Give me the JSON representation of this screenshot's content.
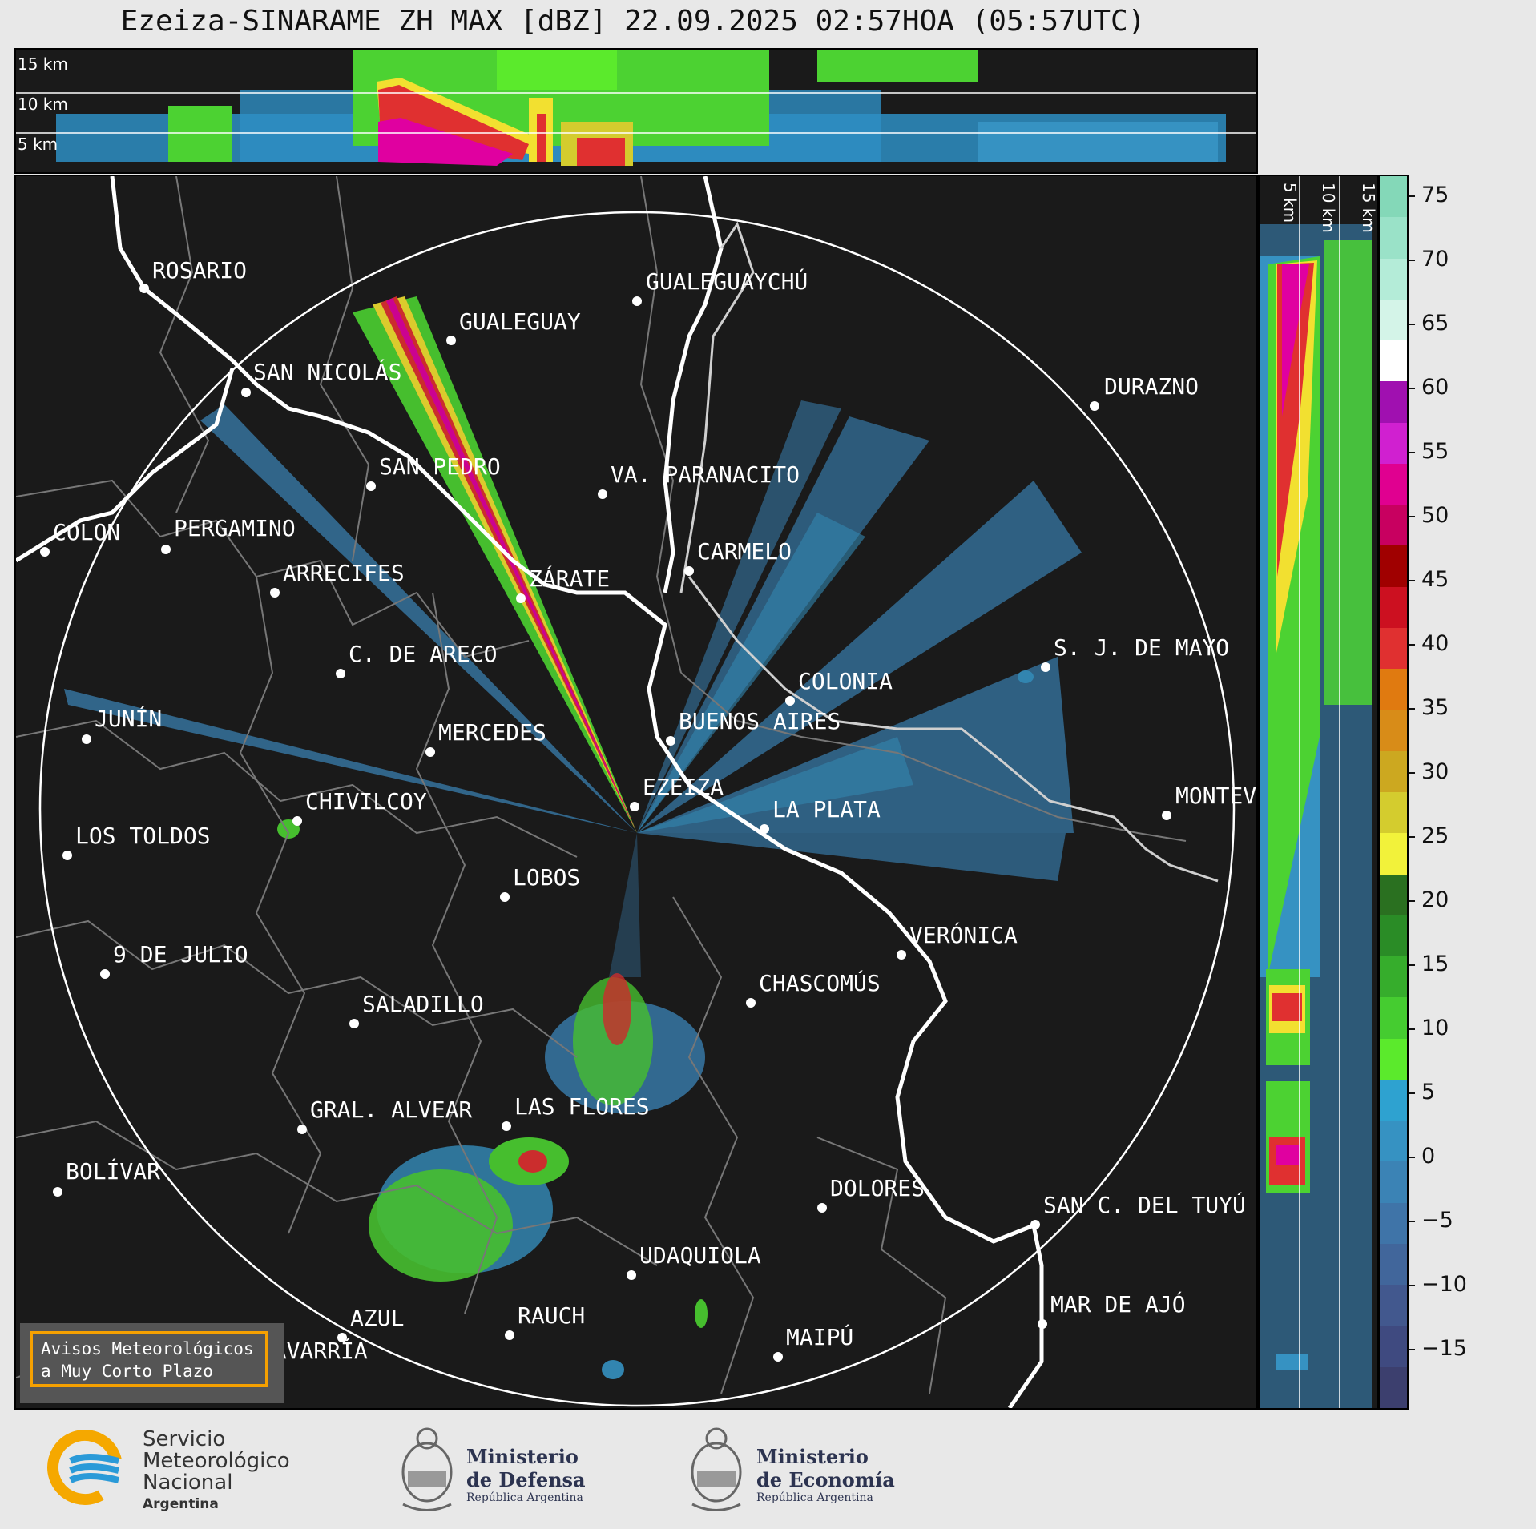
{
  "title": "Ezeiza-SINARAME ZH MAX [dBZ] 22.09.2025 02:57HOA (05:57UTC)",
  "top_panel_heights": [
    "15 km",
    "10 km",
    "5 km"
  ],
  "side_panel_heights": [
    "5 km",
    "10 km",
    "15 km"
  ],
  "colorbar": {
    "ticks": [
      "75",
      "70",
      "65",
      "60",
      "55",
      "50",
      "45",
      "40",
      "35",
      "30",
      "25",
      "20",
      "15",
      "10",
      "5",
      "0",
      "−5",
      "−10",
      "−15"
    ],
    "colors": [
      "#3c3f6e",
      "#3f4a80",
      "#42588e",
      "#41669b",
      "#3f74a8",
      "#3b83b5",
      "#3692c2",
      "#2ea2d0",
      "#5bea2c",
      "#45cc30",
      "#36ad2c",
      "#2a8c26",
      "#2a7020",
      "#f2f23a",
      "#d4cc2e",
      "#cca820",
      "#d88c18",
      "#e07a10",
      "#e03030",
      "#cc1020",
      "#a00000",
      "#c80060",
      "#e00090",
      "#d020d0",
      "#a010b0",
      "#ffffff",
      "#d4f4e8",
      "#b4ecd8",
      "#9ae2c8",
      "#84d8b8"
    ]
  },
  "cities": [
    {
      "name": "ROSARIO"
    },
    {
      "name": "GUALEGUAYCHÚ"
    },
    {
      "name": "GUALEGUAY"
    },
    {
      "name": "SAN NICOLÁS"
    },
    {
      "name": "DURAZNO"
    },
    {
      "name": "SAN PEDRO"
    },
    {
      "name": "VA. PARANACITO"
    },
    {
      "name": "COLON"
    },
    {
      "name": "PERGAMINO"
    },
    {
      "name": "CARMELO"
    },
    {
      "name": "ARRECIFES"
    },
    {
      "name": "ZÁRATE"
    },
    {
      "name": "C. DE ARECO"
    },
    {
      "name": "S. J. DE MAYO"
    },
    {
      "name": "COLONIA"
    },
    {
      "name": "JUNÍN"
    },
    {
      "name": "BUENOS AIRES"
    },
    {
      "name": "MERCEDES"
    },
    {
      "name": "EZEIZA"
    },
    {
      "name": "MONTEVIDEO"
    },
    {
      "name": "CHIVILCOY"
    },
    {
      "name": "LA PLATA"
    },
    {
      "name": "LOS TOLDOS"
    },
    {
      "name": "LOBOS"
    },
    {
      "name": "VERÓNICA"
    },
    {
      "name": "9 DE JULIO"
    },
    {
      "name": "CHASCOMÚS"
    },
    {
      "name": "SALADILLO"
    },
    {
      "name": "GRAL. ALVEAR"
    },
    {
      "name": "LAS FLORES"
    },
    {
      "name": "BOLÍVAR"
    },
    {
      "name": "DOLORES"
    },
    {
      "name": "SAN C. DEL TUYÚ"
    },
    {
      "name": "UDAQUIOLA"
    },
    {
      "name": "MAR DE AJÓ"
    },
    {
      "name": "AZUL"
    },
    {
      "name": "RAUCH"
    },
    {
      "name": "MAIPÚ"
    },
    {
      "name": "OLAVARRÍA"
    }
  ],
  "aviso": {
    "line1": "Avisos Meteorológicos",
    "line2": "a Muy Corto Plazo"
  },
  "footer": {
    "smn_line1": "Servicio",
    "smn_line2": "Meteorológico",
    "smn_line3": "Nacional",
    "smn_line4": "Argentina",
    "defensa_line1": "Ministerio",
    "defensa_line2": "de Defensa",
    "defensa_line3": "República Argentina",
    "economia_line1": "Ministerio",
    "economia_line2": "de Economía",
    "economia_line3": "República Argentina"
  }
}
